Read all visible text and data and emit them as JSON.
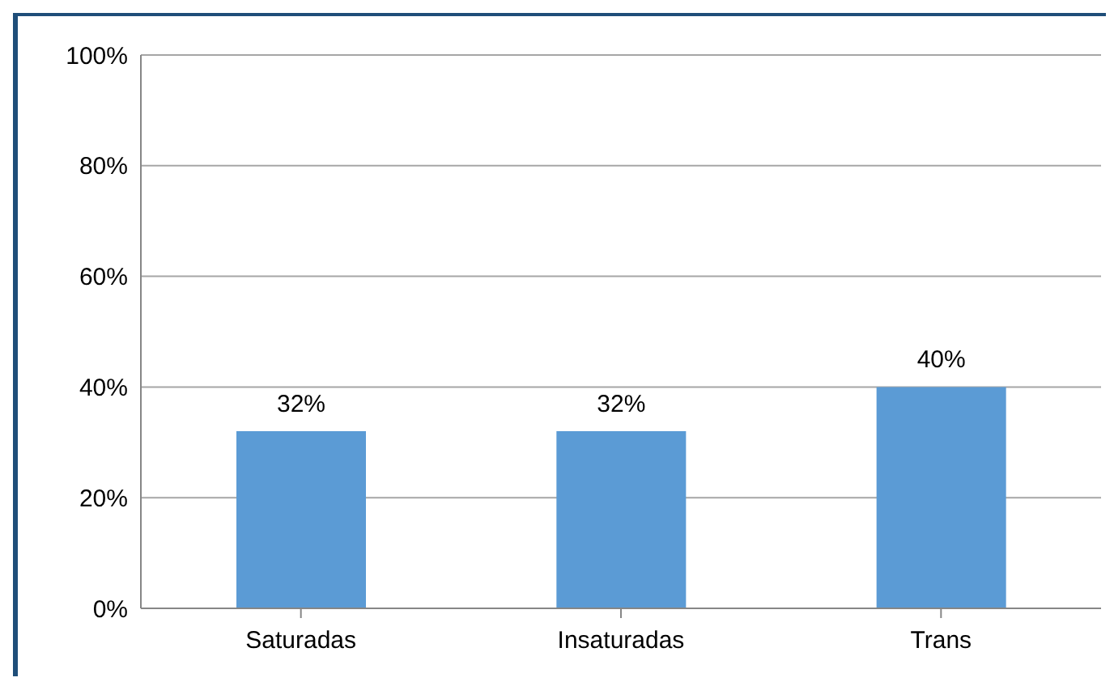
{
  "chart_data": {
    "type": "bar",
    "categories": [
      "Saturadas",
      "Insaturadas",
      "Trans"
    ],
    "values": [
      32,
      32,
      40
    ],
    "color": "#5b9bd5",
    "value_labels": [
      "32%",
      "32%",
      "40%"
    ],
    "ylim": [
      0,
      100
    ],
    "yticks": [
      {
        "value": 0,
        "label": "0%"
      },
      {
        "value": 20,
        "label": "20%"
      },
      {
        "value": 40,
        "label": "40%"
      },
      {
        "value": 60,
        "label": "60%"
      },
      {
        "value": 80,
        "label": "80%"
      },
      {
        "value": 100,
        "label": "100%"
      }
    ],
    "grid": "y",
    "legend": false
  }
}
